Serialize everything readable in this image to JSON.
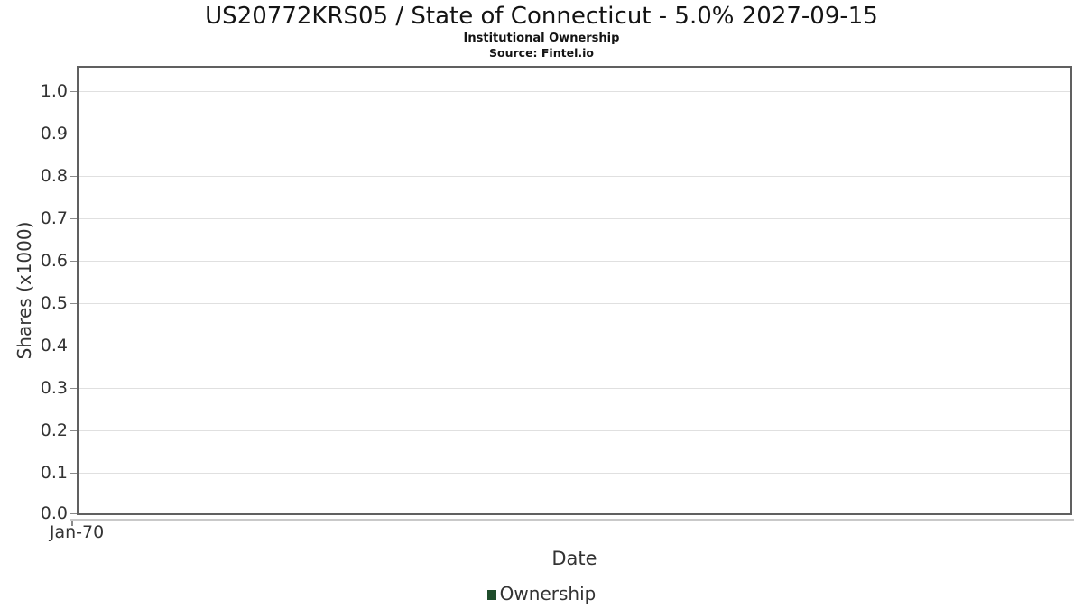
{
  "chart_data": {
    "type": "line",
    "title": "US20772KRS05 / State of Connecticut - 5.0% 2027-09-15",
    "subtitle": "Institutional Ownership",
    "source_note": "Source: Fintel.io",
    "xlabel": "Date",
    "ylabel": "Shares (x1000)",
    "x_tick_labels": [
      "Jan-70"
    ],
    "y_tick_labels": [
      "0.0",
      "0.1",
      "0.2",
      "0.3",
      "0.4",
      "0.5",
      "0.6",
      "0.7",
      "0.8",
      "0.9",
      "1.0"
    ],
    "ylim": [
      0.0,
      1.055
    ],
    "grid": true,
    "legend_position": "bottom",
    "series": [
      {
        "name": "Ownership",
        "color": "#1f4d2b",
        "x": [],
        "values": []
      }
    ]
  },
  "legend": {
    "items": [
      {
        "label": "Ownership",
        "color": "#1f4d2b"
      }
    ]
  },
  "colors": {
    "page_bg": "#ffffff",
    "title_text": "#141414",
    "text": "#333333",
    "grid": "#e0e0e0",
    "plot_border": "#606060",
    "axis_line": "#c9c9c9",
    "tick": "#8a8a8a",
    "legend_marker": "#1f4d2b"
  }
}
